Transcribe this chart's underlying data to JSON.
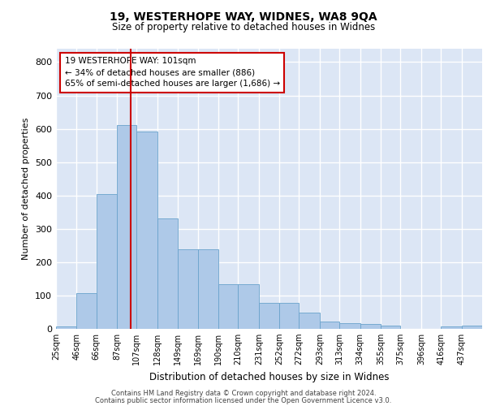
{
  "title1": "19, WESTERHOPE WAY, WIDNES, WA8 9QA",
  "title2": "Size of property relative to detached houses in Widnes",
  "xlabel": "Distribution of detached houses by size in Widnes",
  "ylabel": "Number of detached properties",
  "footer1": "Contains HM Land Registry data © Crown copyright and database right 2024.",
  "footer2": "Contains public sector information licensed under the Open Government Licence v3.0.",
  "annotation_title": "19 WESTERHOPE WAY: 101sqm",
  "annotation_line1": "← 34% of detached houses are smaller (886)",
  "annotation_line2": "65% of semi-detached houses are larger (1,686) →",
  "property_size": 101,
  "bar_color": "#aec9e8",
  "bar_edge_color": "#6aa3cc",
  "vline_color": "#cc0000",
  "annotation_box_color": "#ffffff",
  "annotation_box_edge": "#cc0000",
  "background_color": "#dce6f5",
  "grid_color": "#ffffff",
  "categories": [
    "25sqm",
    "46sqm",
    "66sqm",
    "87sqm",
    "107sqm",
    "128sqm",
    "149sqm",
    "169sqm",
    "190sqm",
    "210sqm",
    "231sqm",
    "252sqm",
    "272sqm",
    "293sqm",
    "313sqm",
    "334sqm",
    "355sqm",
    "375sqm",
    "396sqm",
    "416sqm",
    "437sqm"
  ],
  "values": [
    8,
    107,
    403,
    612,
    591,
    330,
    238,
    238,
    133,
    133,
    77,
    77,
    49,
    22,
    16,
    15,
    9,
    0,
    0,
    8,
    9
  ],
  "bin_edges": [
    25,
    46,
    66,
    87,
    107,
    128,
    149,
    169,
    190,
    210,
    231,
    252,
    272,
    293,
    313,
    334,
    355,
    375,
    396,
    416,
    437,
    458
  ],
  "ylim": [
    0,
    840
  ],
  "yticks": [
    0,
    100,
    200,
    300,
    400,
    500,
    600,
    700,
    800
  ]
}
